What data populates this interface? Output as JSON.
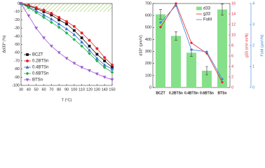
{
  "chart_data": [
    {
      "type": "line",
      "x_label": "T (°C)",
      "y_label": "Δd33* (%)",
      "x": [
        30,
        40,
        50,
        60,
        70,
        80,
        90,
        100,
        110,
        120,
        130,
        140,
        150
      ],
      "xlim": [
        30,
        150
      ],
      "xticks": [
        30,
        40,
        50,
        60,
        70,
        80,
        90,
        100,
        110,
        120,
        130,
        140,
        150
      ],
      "ylim": [
        -100,
        0
      ],
      "yticks": [
        0,
        -10,
        -20,
        -30,
        -40,
        -50,
        -60,
        -70,
        -80,
        -90,
        -100
      ],
      "legend": "lower-left",
      "series": [
        {
          "name": "BCZT",
          "color": "#111111",
          "marker": "square",
          "values": [
            0,
            -3,
            -6,
            -10,
            -14,
            -20,
            -25,
            -33,
            -42,
            -52,
            -62,
            -70,
            -78
          ]
        },
        {
          "name": "0.2BTSn",
          "color": "#e3242b",
          "marker": "circle",
          "values": [
            0,
            -2,
            -5,
            -8,
            -12,
            -17,
            -22,
            -28,
            -36,
            -45,
            -55,
            -66,
            -75
          ]
        },
        {
          "name": "0.4BTSn",
          "color": "#2f6fd6",
          "marker": "triangle",
          "values": [
            0,
            -4,
            -9,
            -14,
            -19,
            -25,
            -31,
            -38,
            -47,
            -57,
            -67,
            -75,
            -80
          ]
        },
        {
          "name": "0.6BTSn",
          "color": "#22b04b",
          "marker": "diamond",
          "values": [
            0,
            -5,
            -11,
            -17,
            -23,
            -29,
            -36,
            -44,
            -52,
            -61,
            -70,
            -78,
            -84
          ]
        },
        {
          "name": "BTSn",
          "color": "#9b59d0",
          "marker": "triangle-down",
          "values": [
            0,
            -15,
            -30,
            -42,
            -52,
            -60,
            -67,
            -73,
            -78,
            -82,
            -86,
            -90,
            -93
          ]
        }
      ]
    },
    {
      "type": "bar",
      "y_label": "d33* (pm/V)",
      "y2_label": "g33 (mV·m/N)",
      "y3_label": "FoM (pm²/N)",
      "categories": [
        "BCZT",
        "0.2BTSn",
        "0.4BTSn",
        "0.6BTSn",
        "BTSn"
      ],
      "ylim": [
        0,
        700
      ],
      "yticks": [
        0,
        100,
        200,
        300,
        400,
        500,
        600,
        700
      ],
      "y2lim": [
        0,
        16
      ],
      "y2ticks": [
        0,
        2,
        4,
        6,
        8,
        10,
        12,
        14,
        16
      ],
      "y3lim": [
        0,
        4
      ],
      "y3ticks": [
        0,
        1,
        2,
        3,
        4
      ],
      "legend": "upper-right",
      "series": [
        {
          "name": "d33",
          "color": "#86e08a",
          "values": [
            610,
            430,
            290,
            140,
            650
          ],
          "errors": [
            40,
            35,
            30,
            35,
            45
          ]
        },
        {
          "name": "g33",
          "color": "#e3242b",
          "axis": "y2",
          "values": [
            11.5,
            16,
            8.5,
            6.5,
            1
          ]
        },
        {
          "name": "FoM",
          "color": "#3a7fd5",
          "axis": "y3",
          "values": [
            3.1,
            3.9,
            1.8,
            1.7,
            0.4
          ]
        }
      ]
    }
  ]
}
